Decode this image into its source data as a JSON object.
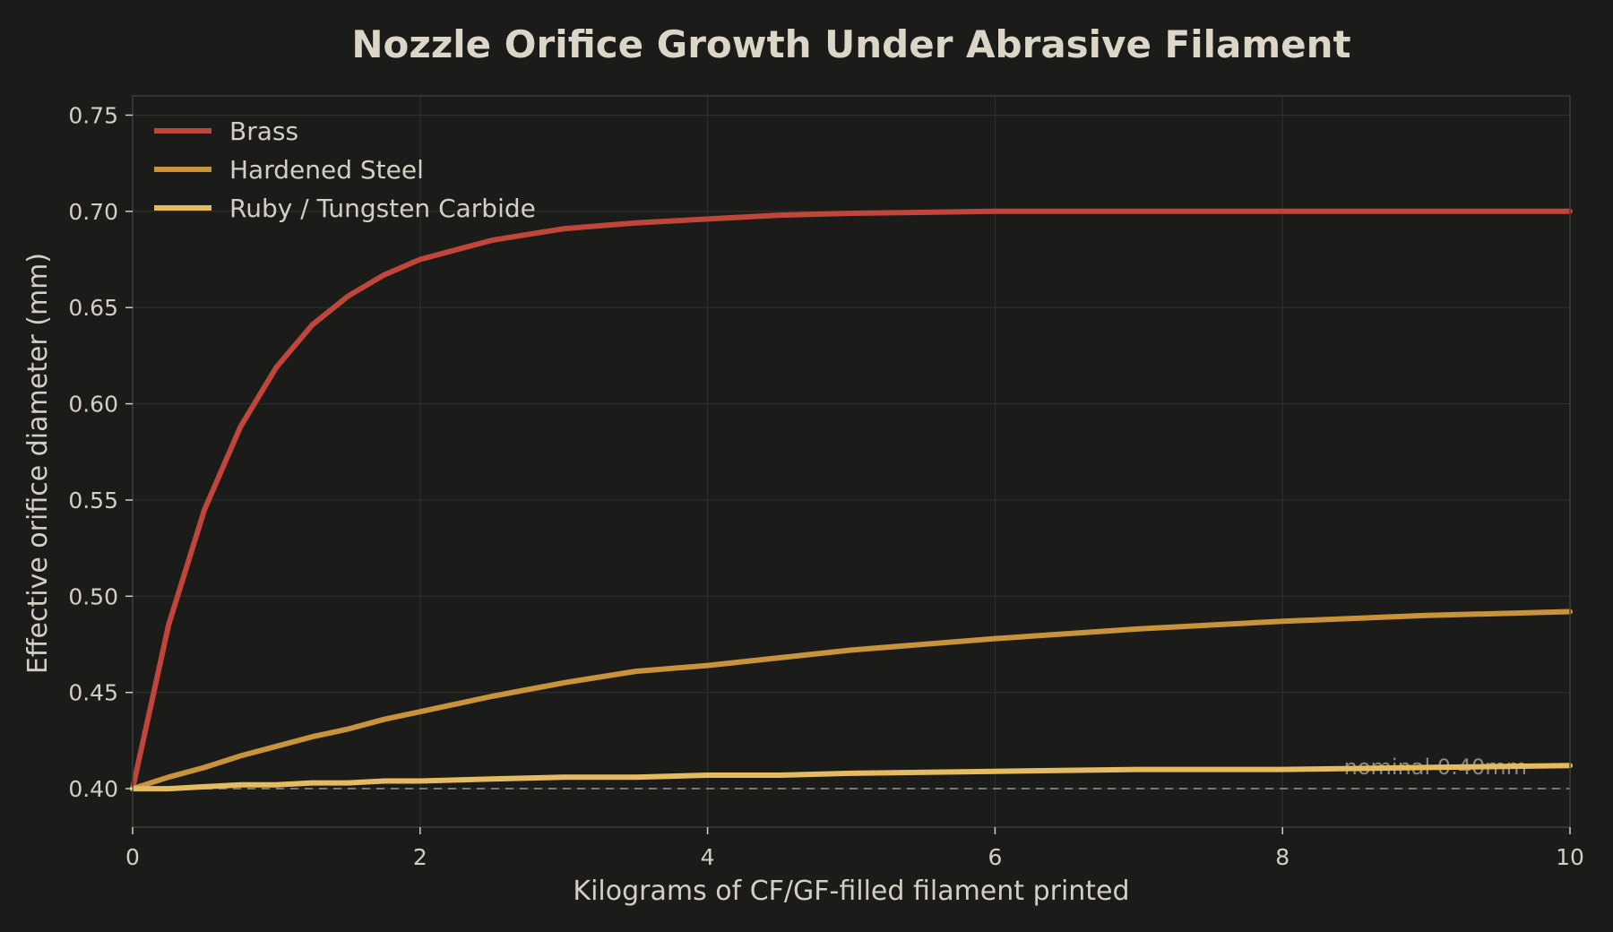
{
  "chart_data": {
    "type": "line",
    "title": "Nozzle Orifice Growth Under Abrasive Filament",
    "xlabel": "Kilograms of CF/GF-filled filament printed",
    "ylabel": "Effective orifice diameter (mm)",
    "xlim": [
      0,
      10
    ],
    "ylim": [
      0.38,
      0.76
    ],
    "x_ticks": [
      0,
      2,
      4,
      6,
      8,
      10
    ],
    "x_tick_labels": [
      "0",
      "2",
      "4",
      "6",
      "8",
      "10"
    ],
    "y_ticks": [
      0.4,
      0.45,
      0.5,
      0.55,
      0.6,
      0.65,
      0.7,
      0.75
    ],
    "y_tick_labels": [
      "0.40",
      "0.45",
      "0.50",
      "0.55",
      "0.60",
      "0.65",
      "0.70",
      "0.75"
    ],
    "grid": true,
    "legend_position": "top-left",
    "x": [
      0,
      0.25,
      0.5,
      0.75,
      1,
      1.25,
      1.5,
      1.75,
      2,
      2.5,
      3,
      3.5,
      4,
      4.5,
      5,
      6,
      7,
      8,
      9,
      10
    ],
    "series": [
      {
        "name": "Brass",
        "color": "#c0463b",
        "values": [
          0.4,
          0.485,
          0.545,
          0.588,
          0.619,
          0.641,
          0.656,
          0.667,
          0.675,
          0.685,
          0.691,
          0.694,
          0.696,
          0.698,
          0.699,
          0.7,
          0.7,
          0.7,
          0.7,
          0.7
        ]
      },
      {
        "name": "Hardened Steel",
        "color": "#c8933a",
        "values": [
          0.4,
          0.406,
          0.411,
          0.417,
          0.422,
          0.427,
          0.431,
          0.436,
          0.44,
          0.448,
          0.455,
          0.461,
          0.464,
          0.468,
          0.472,
          0.478,
          0.483,
          0.487,
          0.49,
          0.492
        ]
      },
      {
        "name": "Ruby / Tungsten Carbide",
        "color": "#e5bb62",
        "values": [
          0.4,
          0.4,
          0.401,
          0.402,
          0.402,
          0.403,
          0.403,
          0.404,
          0.404,
          0.405,
          0.406,
          0.406,
          0.407,
          0.407,
          0.408,
          0.409,
          0.41,
          0.41,
          0.411,
          0.412
        ]
      }
    ],
    "reference_line": {
      "y": 0.4,
      "label": "nominal 0.40mm",
      "color": "#7a7770"
    }
  },
  "colors": {
    "background": "#1b1b19",
    "text": "#d4cfc2",
    "grid": "#2e2e2b",
    "spine": "#3c3c39"
  }
}
